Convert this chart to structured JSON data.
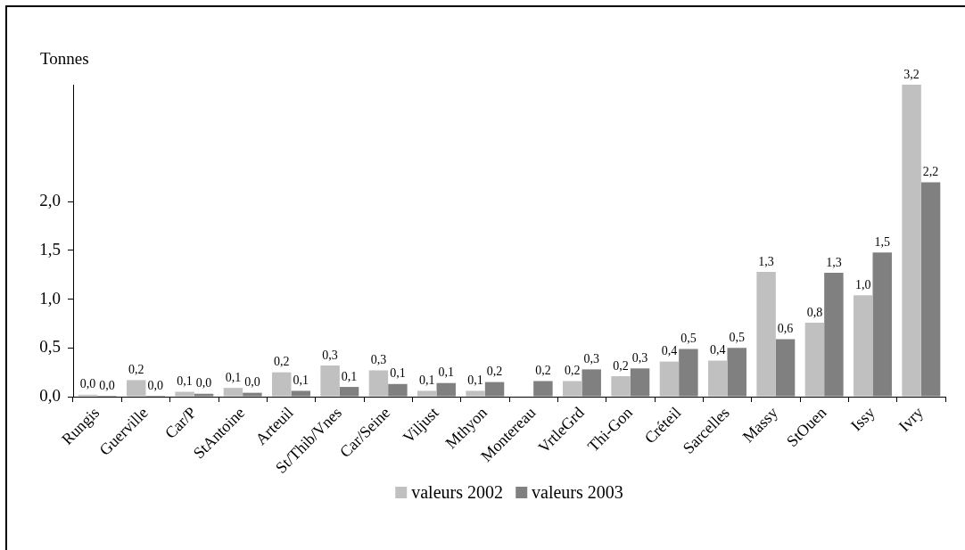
{
  "chart_data": {
    "type": "bar",
    "ylabel": "Tonnes",
    "categories": [
      "Rungis",
      "Guerville",
      "Car/P",
      "StAntoine",
      "Arteuil",
      "St/Thib/Vnes",
      "Car/Seine",
      "Viljust",
      "Mthyon",
      "Montereau",
      "VrtleGrd",
      "Thi-Gon",
      "Créteil",
      "Sarcelles",
      "Massy",
      "StOuen",
      "Issy",
      "Ivry"
    ],
    "series": [
      {
        "name": "valeurs 2002",
        "color": "#c0c0c0",
        "values": [
          0.02,
          0.17,
          0.05,
          0.09,
          0.25,
          0.32,
          0.27,
          0.06,
          0.06,
          null,
          0.16,
          0.21,
          0.36,
          0.37,
          1.28,
          0.76,
          1.04,
          3.2
        ],
        "value_labels": [
          "0,0",
          "0,2",
          "0,1",
          "0,1",
          "0,2",
          "0,3",
          "0,3",
          "0,1",
          "0,1",
          null,
          "0,2",
          "0,2",
          "0,4",
          "0,4",
          "1,3",
          "0,8",
          "1,0",
          "3,2"
        ]
      },
      {
        "name": "valeurs 2003",
        "color": "#808080",
        "values": [
          0.01,
          0.01,
          0.03,
          0.04,
          0.06,
          0.1,
          0.13,
          0.14,
          0.15,
          0.16,
          0.28,
          0.29,
          0.49,
          0.5,
          0.59,
          1.27,
          1.48,
          2.2
        ],
        "value_labels": [
          "0,0",
          "0,0",
          "0,0",
          "0,0",
          "0,1",
          "0,1",
          "0,1",
          "0,1",
          "0,2",
          "0,2",
          "0,3",
          "0,3",
          "0,5",
          "0,5",
          "0,6",
          "1,3",
          "1,5",
          "2,2"
        ]
      }
    ],
    "ylim": [
      0,
      3.2
    ],
    "yticks": [
      {
        "value": 0,
        "label": "0,0"
      },
      {
        "value": 0.5,
        "label": "0,5"
      },
      {
        "value": 1,
        "label": "1,0"
      },
      {
        "value": 1.5,
        "label": "1,5"
      },
      {
        "value": 2,
        "label": "2,0"
      }
    ],
    "grid": false,
    "legend": "bottom"
  }
}
